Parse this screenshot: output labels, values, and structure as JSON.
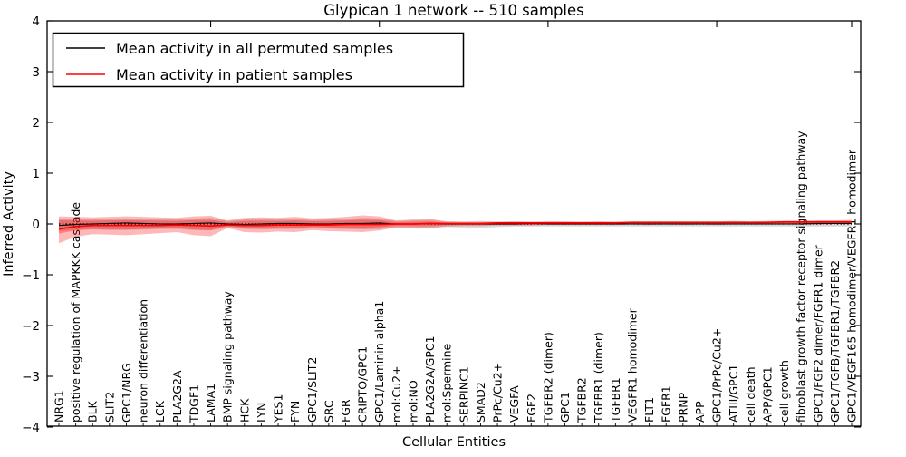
{
  "title": "Glypican 1 network -- 510 samples",
  "legend": {
    "items": [
      {
        "label": "Mean activity in all permuted samples",
        "color": "#000000"
      },
      {
        "label": "Mean activity in patient samples",
        "color": "#ff0000"
      }
    ]
  },
  "chart_data": {
    "type": "line",
    "title": "Glypican 1 network -- 510 samples",
    "xlabel": "Cellular Entities",
    "ylabel": "Inferred Activity",
    "ylim": [
      -4,
      4
    ],
    "yticks": [
      4,
      3,
      2,
      1,
      0,
      -1,
      -2,
      -3,
      -4
    ],
    "yticklabels": [
      "4",
      "3",
      "2",
      "1",
      "0",
      "−1",
      "−2",
      "−3",
      "−4"
    ],
    "grid": false,
    "legend_position": "upper left",
    "top_tick_indices": [
      9,
      19,
      29,
      39,
      47
    ],
    "categories": [
      "NRG1",
      "positive regulation of MAPKKK cascade",
      "BLK",
      "SLIT2",
      "GPC1/NRG",
      "neuron differentiation",
      "LCK",
      "PLA2G2A",
      "TDGF1",
      "LAMA1",
      "BMP signaling pathway",
      "HCK",
      "LYN",
      "YES1",
      "FYN",
      "GPC1/SLIT2",
      "SRC",
      "FGR",
      "CRIPTO/GPC1",
      "GPC1/Laminin alpha1",
      "mol:Cu2+",
      "mol:NO",
      "PLA2G2A/GPC1",
      "mol:Spermine",
      "SERPINC1",
      "SMAD2",
      "PrPc/Cu2+",
      "VEGFA",
      "FGF2",
      "TGFBR2 (dimer)",
      "GPC1",
      "TGFBR2",
      "TGFBR1 (dimer)",
      "TGFBR1",
      "VEGFR1 homodimer",
      "FLT1",
      "FGFR1",
      "PRNP",
      "APP",
      "GPC1/PrPc/Cu2+",
      "ATIII/GPC1",
      "cell death",
      "APP/GPC1",
      "cell growth",
      "fibroblast growth factor receptor signaling pathway",
      "GPC1/FGF2 dimer/FGFR1 dimer",
      "GPC1/TGFB/TGFBR1/TGFBR2",
      "GPC1/VEGF165 homodimer/VEGFR1 homodimer"
    ],
    "series": [
      {
        "name": "Mean activity in all permuted samples",
        "color": "#000000",
        "values": [
          -0.03,
          -0.01,
          0.0,
          0.01,
          0.02,
          0.01,
          0.0,
          0.0,
          0.01,
          0.02,
          0.0,
          -0.01,
          0.0,
          0.01,
          0.01,
          0.0,
          0.0,
          0.01,
          0.01,
          0.02,
          0.0,
          0.0,
          0.01,
          0.0,
          0.0,
          0.0,
          0.0,
          0.0,
          0.01,
          0.0,
          0.0,
          0.0,
          0.0,
          0.0,
          0.0,
          0.0,
          0.0,
          0.0,
          0.0,
          0.0,
          0.0,
          0.0,
          0.0,
          0.0,
          0.0,
          0.01,
          0.01,
          0.01
        ]
      },
      {
        "name": "Mean activity in patient samples",
        "color": "#ff0000",
        "values": [
          -0.1,
          -0.05,
          -0.03,
          -0.03,
          -0.03,
          -0.03,
          -0.03,
          -0.02,
          -0.03,
          -0.04,
          -0.02,
          -0.03,
          -0.03,
          -0.02,
          -0.02,
          -0.02,
          -0.02,
          -0.01,
          -0.01,
          -0.01,
          0.0,
          0.0,
          0.01,
          0.01,
          0.01,
          0.01,
          0.02,
          0.02,
          0.02,
          0.02,
          0.02,
          0.02,
          0.02,
          0.02,
          0.03,
          0.03,
          0.03,
          0.03,
          0.03,
          0.03,
          0.03,
          0.03,
          0.03,
          0.04,
          0.04,
          0.04,
          0.04,
          0.04
        ]
      }
    ],
    "bands": [
      {
        "name": "permuted-envelope",
        "color": "#888888",
        "opacity": 0.32,
        "upper": [
          0.1,
          0.1,
          0.1,
          0.1,
          0.11,
          0.1,
          0.09,
          0.09,
          0.11,
          0.12,
          0.06,
          0.09,
          0.1,
          0.09,
          0.1,
          0.08,
          0.09,
          0.1,
          0.12,
          0.11,
          0.06,
          0.07,
          0.08,
          0.05,
          0.05,
          0.06,
          0.05,
          0.05,
          0.05,
          0.05,
          0.05,
          0.05,
          0.05,
          0.05,
          0.05,
          0.05,
          0.05,
          0.05,
          0.05,
          0.05,
          0.05,
          0.05,
          0.05,
          0.05,
          0.05,
          0.05,
          0.05,
          0.05
        ],
        "lower": [
          -0.14,
          -0.12,
          -0.11,
          -0.12,
          -0.12,
          -0.11,
          -0.1,
          -0.1,
          -0.12,
          -0.13,
          -0.07,
          -0.1,
          -0.11,
          -0.1,
          -0.1,
          -0.09,
          -0.09,
          -0.1,
          -0.11,
          -0.1,
          -0.07,
          -0.07,
          -0.08,
          -0.06,
          -0.07,
          -0.08,
          -0.06,
          -0.05,
          -0.05,
          -0.05,
          -0.05,
          -0.05,
          -0.05,
          -0.05,
          -0.05,
          -0.05,
          -0.05,
          -0.05,
          -0.05,
          -0.05,
          -0.05,
          -0.05,
          -0.05,
          -0.05,
          -0.05,
          -0.05,
          -0.05,
          -0.05
        ]
      },
      {
        "name": "patient-envelope",
        "color": "#ff0000",
        "opacity": 0.28,
        "inner_scale": 0.5,
        "inner_opacity": 0.3,
        "upper": [
          0.15,
          0.14,
          0.13,
          0.14,
          0.15,
          0.14,
          0.13,
          0.12,
          0.15,
          0.16,
          0.07,
          0.12,
          0.13,
          0.12,
          0.14,
          0.11,
          0.12,
          0.14,
          0.17,
          0.15,
          0.07,
          0.09,
          0.1,
          0.05,
          0.04,
          0.04,
          0.04,
          0.05,
          0.04,
          0.05,
          0.05,
          0.04,
          0.05,
          0.04,
          0.05,
          0.05,
          0.05,
          0.05,
          0.05,
          0.05,
          0.06,
          0.05,
          0.06,
          0.06,
          0.06,
          0.07,
          0.07,
          0.08
        ],
        "lower": [
          -0.38,
          -0.25,
          -0.2,
          -0.21,
          -0.22,
          -0.2,
          -0.18,
          -0.16,
          -0.22,
          -0.24,
          -0.08,
          -0.16,
          -0.17,
          -0.15,
          -0.16,
          -0.12,
          -0.14,
          -0.15,
          -0.16,
          -0.13,
          -0.07,
          -0.08,
          -0.08,
          -0.05,
          -0.04,
          -0.04,
          -0.03,
          -0.03,
          -0.03,
          -0.02,
          -0.02,
          -0.02,
          -0.02,
          -0.02,
          -0.01,
          -0.02,
          -0.01,
          -0.02,
          -0.01,
          -0.02,
          -0.01,
          -0.01,
          -0.01,
          -0.01,
          -0.01,
          -0.01,
          0.0,
          0.0
        ]
      }
    ],
    "zero_reference_line": {
      "value": 0,
      "style": "dotted",
      "color": "#000000"
    }
  }
}
